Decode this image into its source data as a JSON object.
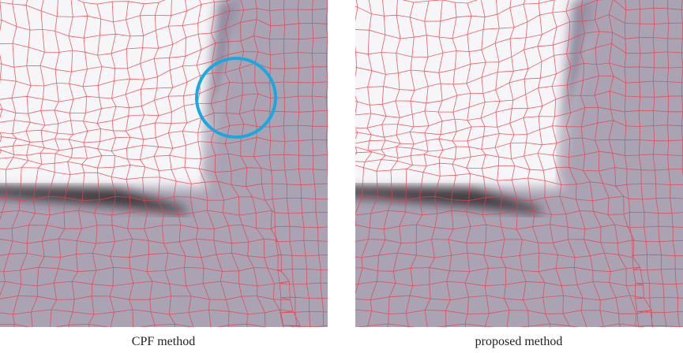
{
  "panels": [
    {
      "caption": "CPF method"
    },
    {
      "caption": "proposed method"
    }
  ]
}
